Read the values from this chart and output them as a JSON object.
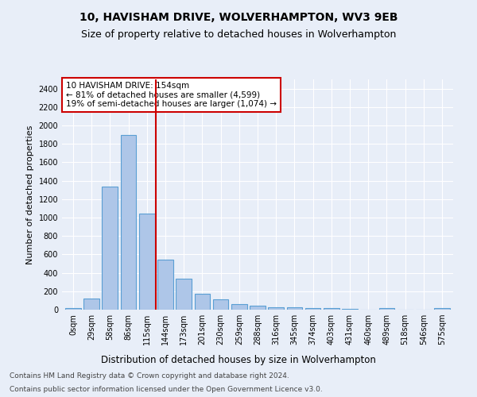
{
  "title": "10, HAVISHAM DRIVE, WOLVERHAMPTON, WV3 9EB",
  "subtitle": "Size of property relative to detached houses in Wolverhampton",
  "xlabel": "Distribution of detached houses by size in Wolverhampton",
  "ylabel": "Number of detached properties",
  "footer_line1": "Contains HM Land Registry data © Crown copyright and database right 2024.",
  "footer_line2": "Contains public sector information licensed under the Open Government Licence v3.0.",
  "bar_labels": [
    "0sqm",
    "29sqm",
    "58sqm",
    "86sqm",
    "115sqm",
    "144sqm",
    "173sqm",
    "201sqm",
    "230sqm",
    "259sqm",
    "288sqm",
    "316sqm",
    "345sqm",
    "374sqm",
    "403sqm",
    "431sqm",
    "460sqm",
    "489sqm",
    "518sqm",
    "546sqm",
    "575sqm"
  ],
  "bar_values": [
    15,
    125,
    1340,
    1895,
    1045,
    540,
    335,
    170,
    110,
    60,
    40,
    30,
    25,
    20,
    15,
    5,
    0,
    20,
    0,
    0,
    15
  ],
  "bar_color": "#aec6e8",
  "bar_edge_color": "#5a9fd4",
  "vline_color": "#cc0000",
  "annotation_text": "10 HAVISHAM DRIVE: 154sqm\n← 81% of detached houses are smaller (4,599)\n19% of semi-detached houses are larger (1,074) →",
  "annotation_box_color": "#ffffff",
  "annotation_box_edge": "#cc0000",
  "ylim": [
    0,
    2500
  ],
  "yticks": [
    0,
    200,
    400,
    600,
    800,
    1000,
    1200,
    1400,
    1600,
    1800,
    2000,
    2200,
    2400
  ],
  "background_color": "#e8eef8",
  "grid_color": "#ffffff",
  "title_fontsize": 10,
  "subtitle_fontsize": 9,
  "xlabel_fontsize": 8.5,
  "ylabel_fontsize": 8,
  "tick_fontsize": 7,
  "annotation_fontsize": 7.5,
  "footer_fontsize": 6.5
}
